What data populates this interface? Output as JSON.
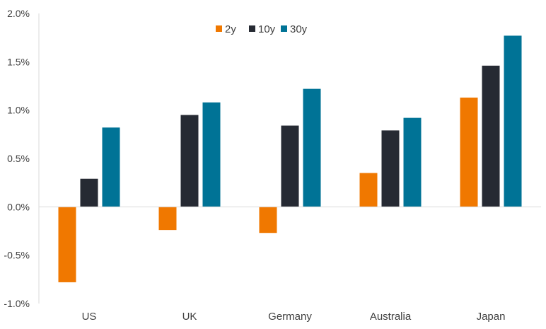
{
  "chart_data": {
    "type": "bar",
    "title": "",
    "xlabel": "",
    "ylabel": "",
    "categories": [
      "US",
      "UK",
      "Germany",
      "Australia",
      "Japan"
    ],
    "ylim": [
      -1.0,
      2.0
    ],
    "yticks": [
      -1.0,
      -0.5,
      0.0,
      0.5,
      1.0,
      1.5,
      2.0
    ],
    "ytick_labels": [
      "-1.0%",
      "-0.5%",
      "0.0%",
      "0.5%",
      "1.0%",
      "1.5%",
      "2.0%"
    ],
    "grid": false,
    "legend_position": "top-center",
    "series": [
      {
        "name": "2y",
        "color": "#f07800",
        "values": [
          -0.78,
          -0.24,
          -0.27,
          0.35,
          1.13
        ]
      },
      {
        "name": "10y",
        "color": "#262a33",
        "values": [
          0.29,
          0.95,
          0.84,
          0.79,
          1.46
        ]
      },
      {
        "name": "30y",
        "color": "#007396",
        "values": [
          0.82,
          1.08,
          1.22,
          0.92,
          1.77
        ]
      }
    ]
  }
}
